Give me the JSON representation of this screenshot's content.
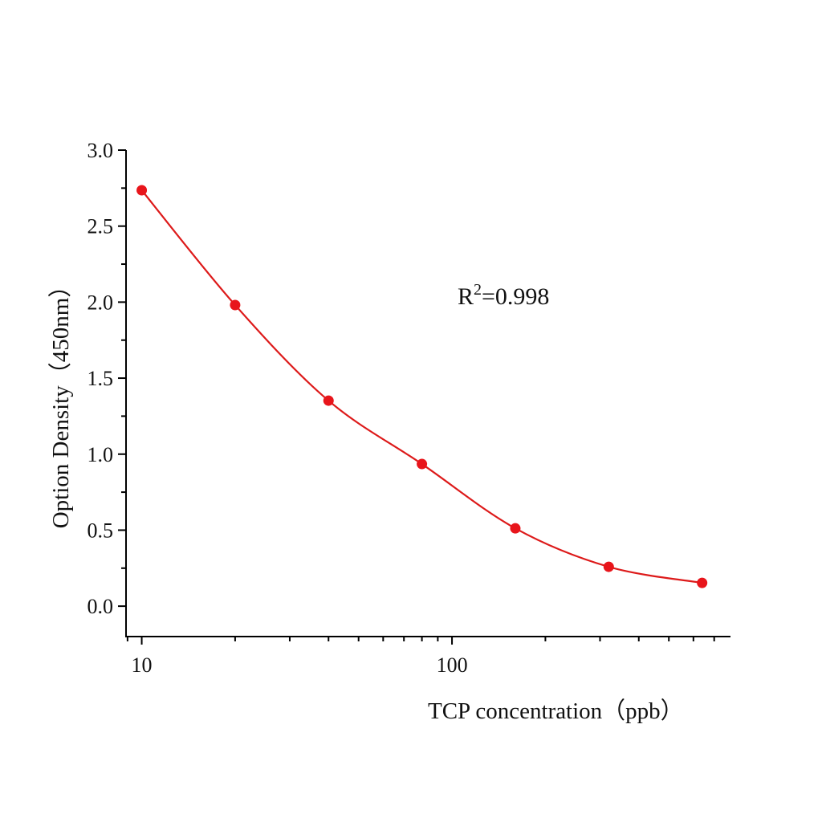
{
  "chart_data": {
    "type": "scatter",
    "title": "",
    "xlabel": "TCP concentration（ppb）",
    "ylabel": "Option Density（450nm）",
    "x_scale": "log",
    "xlim": [
      8.9,
      790
    ],
    "ylim": [
      -0.2,
      3.0
    ],
    "x_ticks": [
      10,
      100
    ],
    "x_tick_labels": [
      "10",
      "100"
    ],
    "y_ticks": [
      0.0,
      0.5,
      1.0,
      1.5,
      2.0,
      2.5,
      3.0
    ],
    "y_tick_labels": [
      "0.0",
      "0.5",
      "1.0",
      "1.5",
      "2.0",
      "2.5",
      "3.0"
    ],
    "grid": false,
    "series": [
      {
        "x": [
          10,
          20,
          40,
          80,
          160,
          320,
          640
        ],
        "y": [
          2.736,
          1.981,
          1.352,
          0.935,
          0.512,
          0.259,
          0.153
        ],
        "color": "#e8151b",
        "fit_line": true
      }
    ],
    "annotation": {
      "prefix": "R",
      "sup": "2",
      "suffix": "=0.998"
    }
  }
}
